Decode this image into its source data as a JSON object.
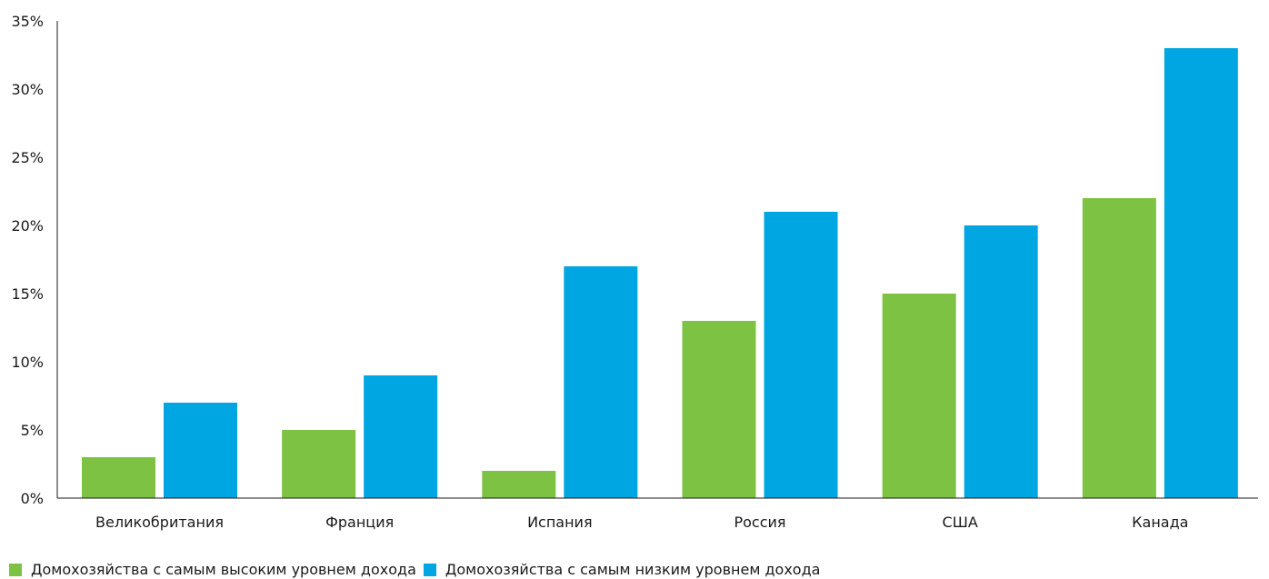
{
  "chart_data": {
    "type": "bar",
    "categories": [
      "Великобритания",
      "Франция",
      "Испания",
      "Россия",
      "США",
      "Канада"
    ],
    "series": [
      {
        "name": "Домохозяйства с самым высоким уровнем дохода",
        "color": "#7dc242",
        "values": [
          3,
          5,
          2,
          13,
          15,
          22
        ]
      },
      {
        "name": "Домохозяйства с самым низким уровнем дохода",
        "color": "#00a6e2",
        "values": [
          7,
          9,
          17,
          21,
          20,
          33
        ]
      }
    ],
    "ylim": [
      0,
      35
    ],
    "yticks": [
      0,
      5,
      10,
      15,
      20,
      25,
      30,
      35
    ],
    "ytick_labels": [
      "0%",
      "5%",
      "10%",
      "15%",
      "20%",
      "25%",
      "30%",
      "35%"
    ],
    "grid": false,
    "legend_position": "bottom-left"
  }
}
